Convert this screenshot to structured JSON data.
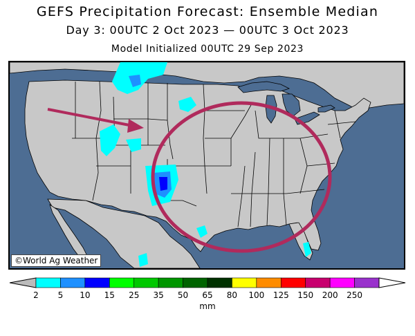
{
  "header": {
    "title": "GEFS Precipitation Forecast: Ensemble Median",
    "subtitle": "Day 3: 00UTC 2 Oct 2023 — 00UTC 3 Oct 2023",
    "init": "Model Initialized 00UTC 29 Sep 2023"
  },
  "map": {
    "credit": "©World Ag Weather",
    "ocean_color": "#4d6d93",
    "land_color": "#c8c8c8",
    "annotation_color": "#b02a5c"
  },
  "legend": {
    "units": "mm",
    "ticks": [
      "2",
      "5",
      "10",
      "15",
      "25",
      "35",
      "50",
      "65",
      "80",
      "100",
      "125",
      "150",
      "200",
      "250"
    ],
    "colors": [
      "#00ffff",
      "#1e90ff",
      "#0000ff",
      "#00ff00",
      "#00c800",
      "#009600",
      "#006400",
      "#003200",
      "#ffff00",
      "#ff8c00",
      "#ff0000",
      "#c8006e",
      "#ff00ff",
      "#9932cc"
    ],
    "under_color": "#bbbbbb",
    "over_color": "#ffffff"
  }
}
